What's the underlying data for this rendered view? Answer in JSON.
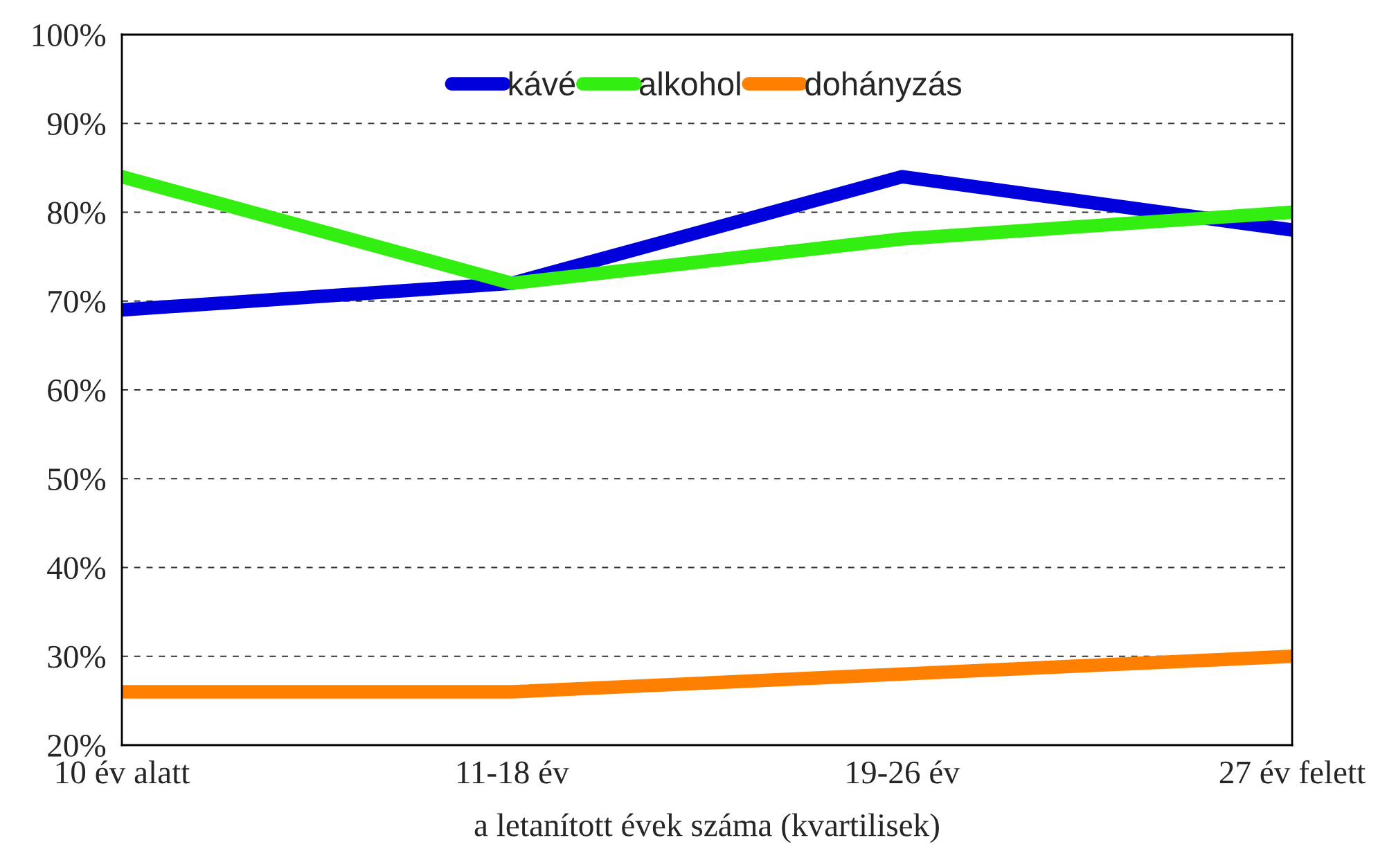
{
  "chart_data": {
    "type": "line",
    "xlabel": "a letanított évek száma (kvartilisek)",
    "categories": [
      "10 év alatt",
      "11-18 év",
      "19-26 év",
      "27 év felett"
    ],
    "series": [
      {
        "name": "kávé",
        "color": "#0000dd",
        "values": [
          69,
          72,
          84,
          78
        ]
      },
      {
        "name": "alkohol",
        "color": "#33ee11",
        "values": [
          84,
          72,
          77,
          80
        ]
      },
      {
        "name": "dohányzás",
        "color": "#ff8000",
        "values": [
          26,
          26,
          28,
          30
        ]
      }
    ],
    "ylim": [
      20,
      100
    ],
    "yticks": [
      {
        "value": 20,
        "label": "20%"
      },
      {
        "value": 30,
        "label": "30%"
      },
      {
        "value": 40,
        "label": "40%"
      },
      {
        "value": 50,
        "label": "50%"
      },
      {
        "value": 60,
        "label": "60%"
      },
      {
        "value": 70,
        "label": "70%"
      },
      {
        "value": 80,
        "label": "80%"
      },
      {
        "value": 90,
        "label": "90%"
      },
      {
        "value": 100,
        "label": "100%"
      }
    ],
    "grid": "y",
    "legend": "top",
    "marker": "none",
    "line_style": "solid"
  }
}
